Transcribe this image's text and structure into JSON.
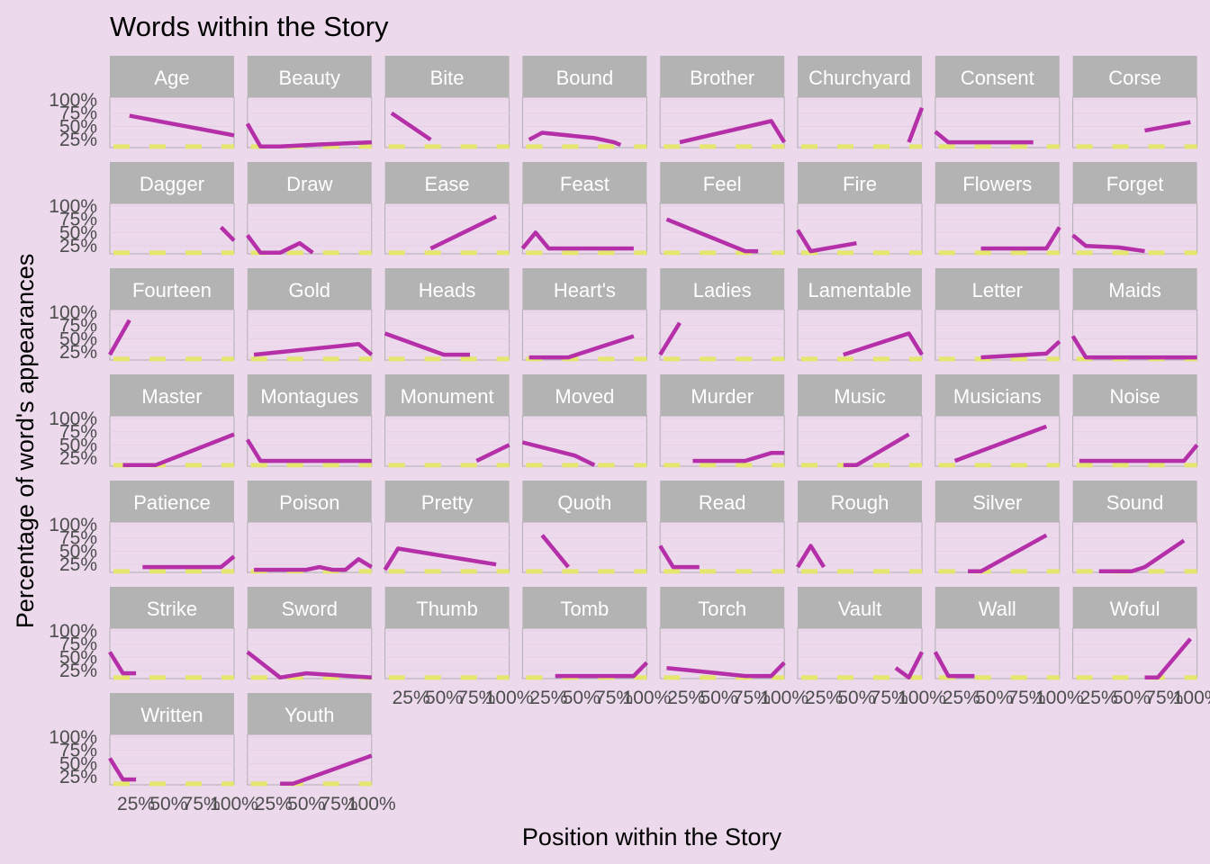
{
  "chart_data": {
    "type": "line",
    "title": "Words within the Story",
    "xlabel": "Position within the Story",
    "ylabel": "Percentage of word's appearances",
    "x_ticks": [
      "25%",
      "50%",
      "75%",
      "100%"
    ],
    "y_ticks": [
      "25%",
      "50%",
      "75%",
      "100%"
    ],
    "xlim": [
      0.05,
      1.0
    ],
    "ylim": [
      0.1,
      1.05
    ],
    "baseline": 0.12,
    "facets": [
      {
        "name": "Age",
        "points": [
          [
            0.2,
            0.7
          ],
          [
            1.0,
            0.33
          ]
        ]
      },
      {
        "name": "Beauty",
        "points": [
          [
            0.05,
            0.55
          ],
          [
            0.15,
            0.12
          ],
          [
            0.3,
            0.12
          ],
          [
            0.45,
            0.14
          ],
          [
            0.6,
            0.16
          ],
          [
            1.0,
            0.2
          ]
        ]
      },
      {
        "name": "Bite",
        "points": [
          [
            0.1,
            0.75
          ],
          [
            0.4,
            0.25
          ]
        ]
      },
      {
        "name": "Bound",
        "points": [
          [
            0.1,
            0.25
          ],
          [
            0.2,
            0.38
          ],
          [
            0.6,
            0.28
          ],
          [
            0.75,
            0.2
          ],
          [
            0.8,
            0.15
          ]
        ]
      },
      {
        "name": "Brother",
        "points": [
          [
            0.2,
            0.2
          ],
          [
            0.9,
            0.6
          ],
          [
            1.0,
            0.2
          ]
        ]
      },
      {
        "name": "Churchyard",
        "points": [
          [
            0.9,
            0.2
          ],
          [
            1.0,
            0.85
          ]
        ]
      },
      {
        "name": "Consent",
        "points": [
          [
            0.05,
            0.4
          ],
          [
            0.15,
            0.2
          ],
          [
            0.8,
            0.2
          ]
        ]
      },
      {
        "name": "Corse",
        "points": [
          [
            0.6,
            0.42
          ],
          [
            0.95,
            0.58
          ]
        ]
      },
      {
        "name": "Dagger",
        "points": [
          [
            0.9,
            0.6
          ],
          [
            1.0,
            0.35
          ]
        ]
      },
      {
        "name": "Draw",
        "points": [
          [
            0.05,
            0.45
          ],
          [
            0.15,
            0.12
          ],
          [
            0.3,
            0.12
          ],
          [
            0.45,
            0.3
          ],
          [
            0.55,
            0.12
          ]
        ]
      },
      {
        "name": "Ease",
        "points": [
          [
            0.4,
            0.2
          ],
          [
            0.9,
            0.8
          ]
        ]
      },
      {
        "name": "Feast",
        "points": [
          [
            0.05,
            0.2
          ],
          [
            0.15,
            0.5
          ],
          [
            0.25,
            0.2
          ],
          [
            0.9,
            0.2
          ]
        ]
      },
      {
        "name": "Feel",
        "points": [
          [
            0.1,
            0.75
          ],
          [
            0.7,
            0.15
          ],
          [
            0.8,
            0.15
          ]
        ]
      },
      {
        "name": "Fire",
        "points": [
          [
            0.05,
            0.55
          ],
          [
            0.15,
            0.15
          ],
          [
            0.5,
            0.3
          ]
        ]
      },
      {
        "name": "Flowers",
        "points": [
          [
            0.4,
            0.2
          ],
          [
            0.9,
            0.2
          ],
          [
            1.0,
            0.6
          ]
        ]
      },
      {
        "name": "Forget",
        "points": [
          [
            0.05,
            0.45
          ],
          [
            0.15,
            0.25
          ],
          [
            0.4,
            0.22
          ],
          [
            0.6,
            0.15
          ]
        ]
      },
      {
        "name": "Fourteen",
        "points": [
          [
            0.05,
            0.2
          ],
          [
            0.2,
            0.85
          ]
        ]
      },
      {
        "name": "Gold",
        "points": [
          [
            0.1,
            0.2
          ],
          [
            0.9,
            0.4
          ],
          [
            1.0,
            0.2
          ]
        ]
      },
      {
        "name": "Heads",
        "points": [
          [
            0.05,
            0.6
          ],
          [
            0.5,
            0.2
          ],
          [
            0.7,
            0.2
          ]
        ]
      },
      {
        "name": "Heart's",
        "points": [
          [
            0.1,
            0.15
          ],
          [
            0.4,
            0.15
          ],
          [
            0.9,
            0.55
          ]
        ]
      },
      {
        "name": "Ladies",
        "points": [
          [
            0.05,
            0.2
          ],
          [
            0.2,
            0.8
          ]
        ]
      },
      {
        "name": "Lamentable",
        "points": [
          [
            0.4,
            0.2
          ],
          [
            0.9,
            0.6
          ],
          [
            1.0,
            0.2
          ]
        ]
      },
      {
        "name": "Letter",
        "points": [
          [
            0.4,
            0.15
          ],
          [
            0.9,
            0.22
          ],
          [
            1.0,
            0.45
          ]
        ]
      },
      {
        "name": "Maids",
        "points": [
          [
            0.05,
            0.55
          ],
          [
            0.15,
            0.15
          ],
          [
            1.0,
            0.15
          ]
        ]
      },
      {
        "name": "Master",
        "points": [
          [
            0.15,
            0.12
          ],
          [
            0.4,
            0.12
          ],
          [
            1.0,
            0.7
          ]
        ]
      },
      {
        "name": "Montagues",
        "points": [
          [
            0.05,
            0.6
          ],
          [
            0.15,
            0.2
          ],
          [
            1.0,
            0.2
          ]
        ]
      },
      {
        "name": "Monument",
        "points": [
          [
            0.75,
            0.2
          ],
          [
            1.0,
            0.5
          ]
        ]
      },
      {
        "name": "Moved",
        "points": [
          [
            0.05,
            0.55
          ],
          [
            0.45,
            0.3
          ],
          [
            0.6,
            0.12
          ]
        ]
      },
      {
        "name": "Murder",
        "points": [
          [
            0.3,
            0.2
          ],
          [
            0.7,
            0.2
          ],
          [
            0.9,
            0.35
          ],
          [
            1.0,
            0.35
          ]
        ]
      },
      {
        "name": "Music",
        "points": [
          [
            0.4,
            0.12
          ],
          [
            0.5,
            0.12
          ],
          [
            0.9,
            0.7
          ]
        ]
      },
      {
        "name": "Musicians",
        "points": [
          [
            0.2,
            0.2
          ],
          [
            0.9,
            0.85
          ]
        ]
      },
      {
        "name": "Noise",
        "points": [
          [
            0.1,
            0.2
          ],
          [
            0.9,
            0.2
          ],
          [
            1.0,
            0.5
          ]
        ]
      },
      {
        "name": "Patience",
        "points": [
          [
            0.3,
            0.2
          ],
          [
            0.9,
            0.2
          ],
          [
            1.0,
            0.4
          ]
        ]
      },
      {
        "name": "Poison",
        "points": [
          [
            0.1,
            0.15
          ],
          [
            0.5,
            0.15
          ],
          [
            0.6,
            0.2
          ],
          [
            0.7,
            0.15
          ],
          [
            0.8,
            0.15
          ],
          [
            0.9,
            0.35
          ],
          [
            1.0,
            0.2
          ]
        ]
      },
      {
        "name": "Pretty",
        "points": [
          [
            0.05,
            0.15
          ],
          [
            0.15,
            0.55
          ],
          [
            0.9,
            0.25
          ]
        ]
      },
      {
        "name": "Quoth",
        "points": [
          [
            0.2,
            0.8
          ],
          [
            0.4,
            0.2
          ]
        ]
      },
      {
        "name": "Read",
        "points": [
          [
            0.05,
            0.6
          ],
          [
            0.15,
            0.2
          ],
          [
            0.35,
            0.2
          ]
        ]
      },
      {
        "name": "Rough",
        "points": [
          [
            0.05,
            0.2
          ],
          [
            0.15,
            0.6
          ],
          [
            0.25,
            0.2
          ]
        ]
      },
      {
        "name": "Silver",
        "points": [
          [
            0.3,
            0.12
          ],
          [
            0.4,
            0.12
          ],
          [
            0.9,
            0.8
          ]
        ]
      },
      {
        "name": "Sound",
        "points": [
          [
            0.25,
            0.12
          ],
          [
            0.5,
            0.12
          ],
          [
            0.6,
            0.2
          ],
          [
            0.9,
            0.7
          ]
        ]
      },
      {
        "name": "Strike",
        "points": [
          [
            0.05,
            0.6
          ],
          [
            0.15,
            0.2
          ],
          [
            0.25,
            0.2
          ]
        ]
      },
      {
        "name": "Sword",
        "points": [
          [
            0.05,
            0.6
          ],
          [
            0.3,
            0.12
          ],
          [
            0.5,
            0.2
          ],
          [
            1.0,
            0.12
          ]
        ]
      },
      {
        "name": "Thumb",
        "points": []
      },
      {
        "name": "Tomb",
        "points": [
          [
            0.3,
            0.15
          ],
          [
            0.9,
            0.15
          ],
          [
            1.0,
            0.4
          ]
        ]
      },
      {
        "name": "Torch",
        "points": [
          [
            0.1,
            0.3
          ],
          [
            0.7,
            0.15
          ],
          [
            0.9,
            0.15
          ],
          [
            1.0,
            0.4
          ]
        ]
      },
      {
        "name": "Vault",
        "points": [
          [
            0.8,
            0.3
          ],
          [
            0.9,
            0.12
          ],
          [
            1.0,
            0.6
          ]
        ]
      },
      {
        "name": "Wall",
        "points": [
          [
            0.05,
            0.6
          ],
          [
            0.15,
            0.15
          ],
          [
            0.35,
            0.15
          ]
        ]
      },
      {
        "name": "Woful",
        "points": [
          [
            0.6,
            0.12
          ],
          [
            0.7,
            0.12
          ],
          [
            0.95,
            0.85
          ]
        ]
      },
      {
        "name": "Written",
        "points": [
          [
            0.05,
            0.6
          ],
          [
            0.15,
            0.2
          ],
          [
            0.25,
            0.2
          ]
        ]
      },
      {
        "name": "Youth",
        "points": [
          [
            0.3,
            0.12
          ],
          [
            0.4,
            0.12
          ],
          [
            1.0,
            0.65
          ]
        ]
      }
    ]
  }
}
